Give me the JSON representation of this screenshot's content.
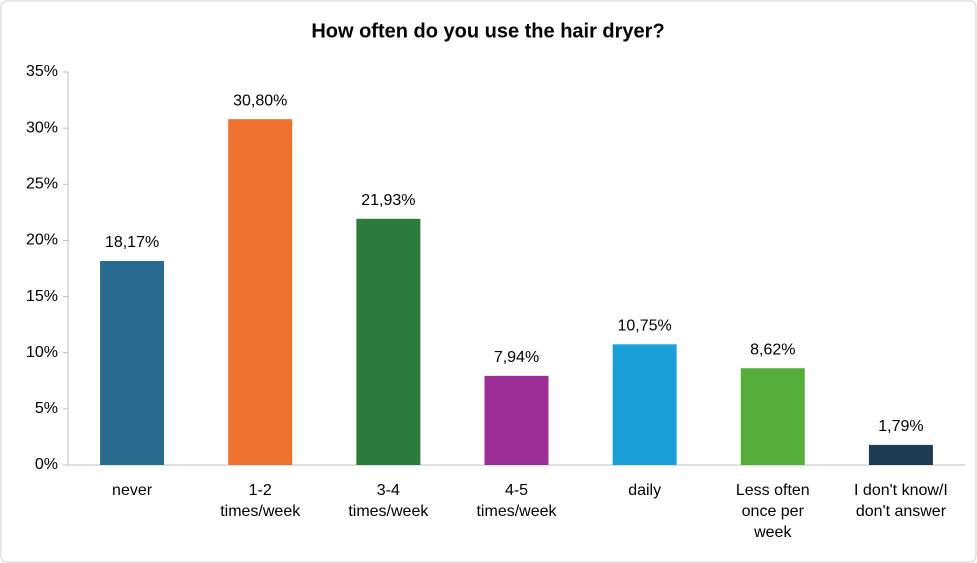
{
  "chart_data": {
    "type": "bar",
    "title": "How often do you use the hair dryer?",
    "categories": [
      "never",
      "1-2 times/week",
      "3-4 times/week",
      "4-5 times/week",
      "daily",
      "Less often once per week",
      "I don't know/I don't answer"
    ],
    "values": [
      18.17,
      30.8,
      21.93,
      7.94,
      10.75,
      8.62,
      1.79
    ],
    "value_labels": [
      "18,17%",
      "30,80%",
      "21,93%",
      "7,94%",
      "10,75%",
      "8,62%",
      "1,79%"
    ],
    "colors": [
      "#2b6a8f",
      "#ee712f",
      "#2e7b3e",
      "#9c2e95",
      "#1a9fd9",
      "#56ad3a",
      "#1e3b52"
    ],
    "ylim": [
      0,
      35
    ],
    "yticks": [
      {
        "value": 0,
        "label": "0%"
      },
      {
        "value": 5,
        "label": "5%"
      },
      {
        "value": 10,
        "label": "10%"
      },
      {
        "value": 15,
        "label": "15%"
      },
      {
        "value": 20,
        "label": "20%"
      },
      {
        "value": 25,
        "label": "25%"
      },
      {
        "value": 30,
        "label": "30%"
      },
      {
        "value": 35,
        "label": "35%"
      }
    ]
  }
}
